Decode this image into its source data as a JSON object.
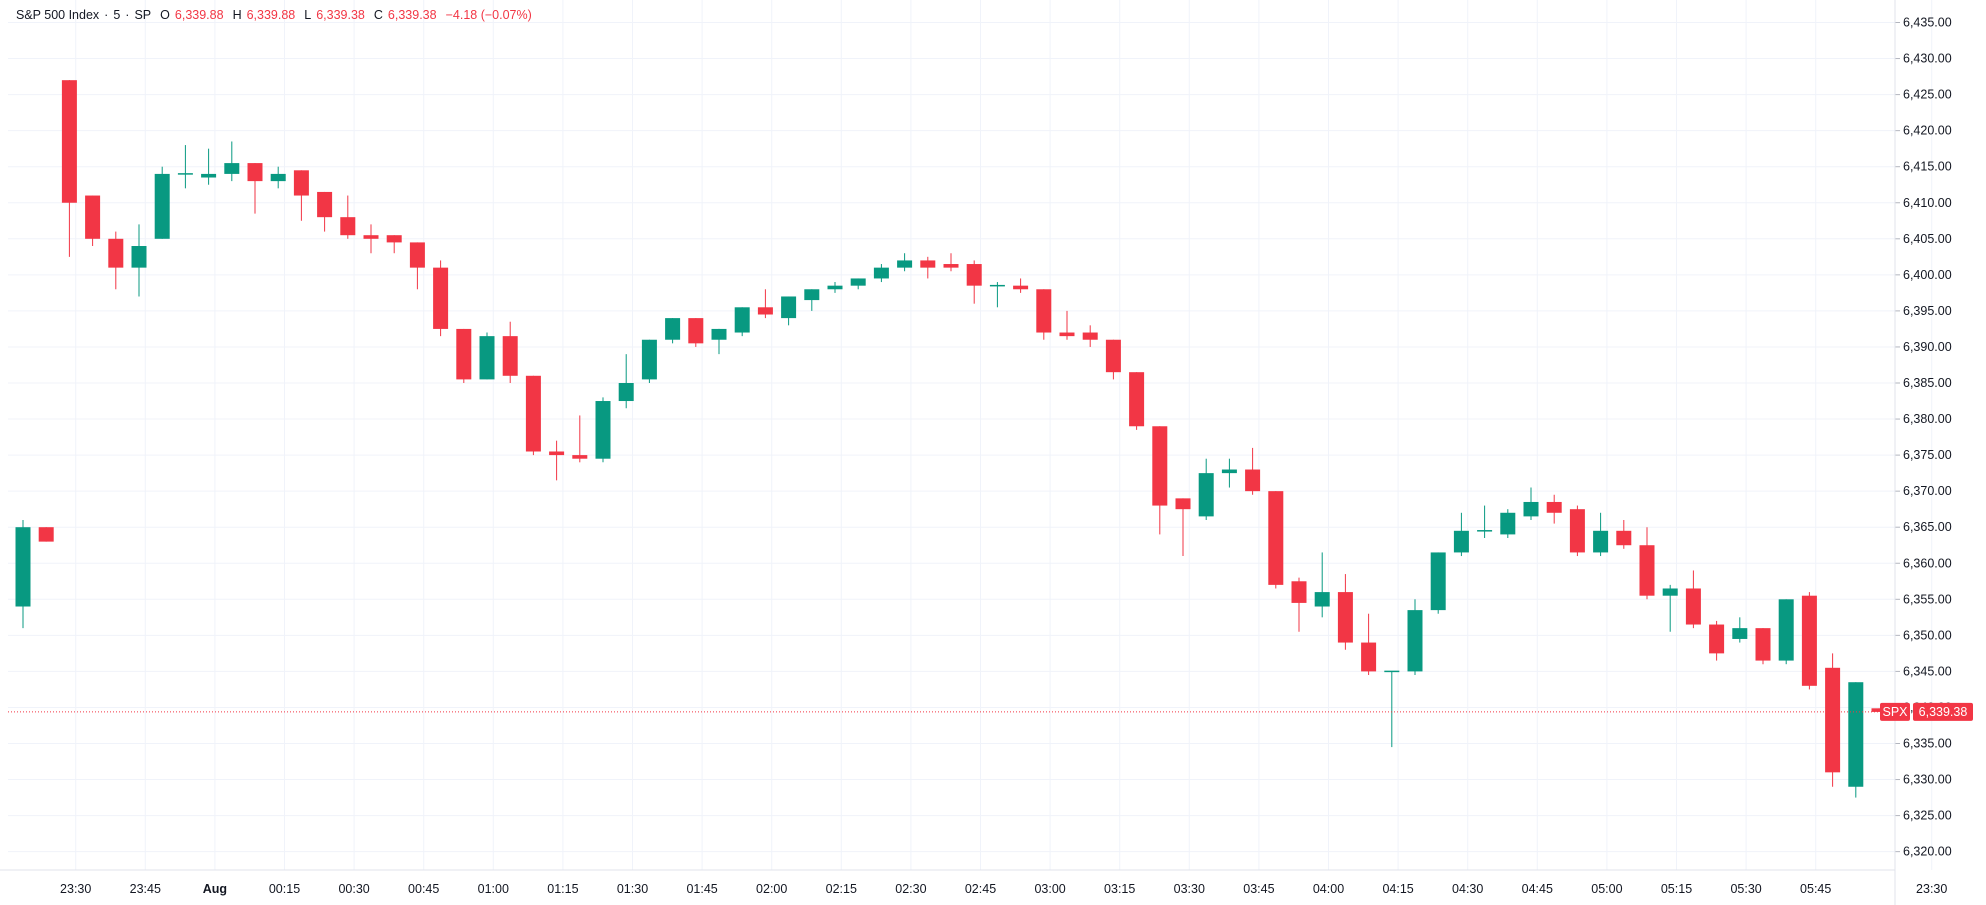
{
  "legend": {
    "symbol": "S&P 500 Index",
    "interval": "5",
    "exchange": "SP",
    "open_label": "O",
    "open": "6,339.88",
    "high_label": "H",
    "high": "6,339.88",
    "low_label": "L",
    "low": "6,339.38",
    "close_label": "C",
    "close": "6,339.38",
    "change": "−4.18 (−0.07%)"
  },
  "last_price": {
    "ticker": "SPX",
    "value": "6,339.38",
    "price": 6339.38
  },
  "colors": {
    "up": "#089981",
    "down": "#f23645",
    "grid": "#f0f3fa",
    "text": "#131722"
  },
  "chart_data": {
    "type": "candlestick",
    "interval_minutes": 5,
    "y_axis": {
      "range": [
        6320,
        6435
      ],
      "ticks": [
        "6,435.00",
        "6,430.00",
        "6,425.00",
        "6,420.00",
        "6,415.00",
        "6,410.00",
        "6,405.00",
        "6,400.00",
        "6,395.00",
        "6,390.00",
        "6,385.00",
        "6,380.00",
        "6,375.00",
        "6,370.00",
        "6,365.00",
        "6,360.00",
        "6,355.00",
        "6,350.00",
        "6,345.00",
        "6,340.00",
        "6,335.00",
        "6,330.00",
        "6,325.00",
        "6,320.00"
      ]
    },
    "x_axis": {
      "ticks": [
        {
          "label": "23:30",
          "index": 2
        },
        {
          "label": "23:45",
          "index": 5
        },
        {
          "label": "Aug",
          "index": 8
        },
        {
          "label": "00:15",
          "index": 11
        },
        {
          "label": "00:30",
          "index": 14
        },
        {
          "label": "00:45",
          "index": 17
        },
        {
          "label": "01:00",
          "index": 20
        },
        {
          "label": "01:15",
          "index": 23
        },
        {
          "label": "01:30",
          "index": 26
        },
        {
          "label": "01:45",
          "index": 29
        },
        {
          "label": "02:00",
          "index": 32
        },
        {
          "label": "02:15",
          "index": 35
        },
        {
          "label": "02:30",
          "index": 38
        },
        {
          "label": "02:45",
          "index": 41
        },
        {
          "label": "03:00",
          "index": 44
        },
        {
          "label": "03:15",
          "index": 47
        },
        {
          "label": "03:30",
          "index": 50
        },
        {
          "label": "03:45",
          "index": 53
        },
        {
          "label": "04:00",
          "index": 56
        },
        {
          "label": "04:15",
          "index": 59
        },
        {
          "label": "04:30",
          "index": 62
        },
        {
          "label": "04:45",
          "index": 65
        },
        {
          "label": "05:00",
          "index": 68
        },
        {
          "label": "05:15",
          "index": 71
        },
        {
          "label": "05:30",
          "index": 74
        },
        {
          "label": "05:45",
          "index": 77
        },
        {
          "label": "23:30",
          "index": 82
        }
      ]
    },
    "candles": [
      {
        "o": 6354,
        "h": 6366,
        "l": 6351,
        "c": 6365
      },
      {
        "o": 6365,
        "h": 6365,
        "l": 6363,
        "c": 6363
      },
      {
        "o": 6427,
        "h": 6427,
        "l": 6402.5,
        "c": 6410
      },
      {
        "o": 6411,
        "h": 6411,
        "l": 6404,
        "c": 6405
      },
      {
        "o": 6405,
        "h": 6406,
        "l": 6398,
        "c": 6401
      },
      {
        "o": 6401,
        "h": 6407,
        "l": 6397,
        "c": 6404
      },
      {
        "o": 6405,
        "h": 6415,
        "l": 6405,
        "c": 6414
      },
      {
        "o": 6414,
        "h": 6418,
        "l": 6412,
        "c": 6414
      },
      {
        "o": 6413.5,
        "h": 6417.5,
        "l": 6412.5,
        "c": 6414
      },
      {
        "o": 6414,
        "h": 6418.5,
        "l": 6413,
        "c": 6415.5
      },
      {
        "o": 6415.5,
        "h": 6415.5,
        "l": 6408.5,
        "c": 6413
      },
      {
        "o": 6413,
        "h": 6415,
        "l": 6412,
        "c": 6414
      },
      {
        "o": 6414.5,
        "h": 6414.5,
        "l": 6407.5,
        "c": 6411
      },
      {
        "o": 6411.5,
        "h": 6411.5,
        "l": 6406,
        "c": 6408
      },
      {
        "o": 6408,
        "h": 6411,
        "l": 6405,
        "c": 6405.5
      },
      {
        "o": 6405.5,
        "h": 6407,
        "l": 6403,
        "c": 6405
      },
      {
        "o": 6405.5,
        "h": 6405.5,
        "l": 6403,
        "c": 6404.5
      },
      {
        "o": 6404.5,
        "h": 6404.5,
        "l": 6398,
        "c": 6401
      },
      {
        "o": 6401,
        "h": 6402,
        "l": 6391.5,
        "c": 6392.5
      },
      {
        "o": 6392.5,
        "h": 6392.5,
        "l": 6385,
        "c": 6385.5
      },
      {
        "o": 6385.5,
        "h": 6392,
        "l": 6385.5,
        "c": 6391.5
      },
      {
        "o": 6391.5,
        "h": 6393.5,
        "l": 6385,
        "c": 6386
      },
      {
        "o": 6386,
        "h": 6386,
        "l": 6375,
        "c": 6375.5
      },
      {
        "o": 6375.5,
        "h": 6377,
        "l": 6371.5,
        "c": 6375
      },
      {
        "o": 6375,
        "h": 6380.5,
        "l": 6374,
        "c": 6374.5
      },
      {
        "o": 6374.5,
        "h": 6383,
        "l": 6374,
        "c": 6382.5
      },
      {
        "o": 6382.5,
        "h": 6389,
        "l": 6381.5,
        "c": 6385
      },
      {
        "o": 6385.5,
        "h": 6391,
        "l": 6385,
        "c": 6391
      },
      {
        "o": 6391,
        "h": 6394,
        "l": 6390.5,
        "c": 6394
      },
      {
        "o": 6394,
        "h": 6394,
        "l": 6390,
        "c": 6390.5
      },
      {
        "o": 6391,
        "h": 6392.5,
        "l": 6389,
        "c": 6392.5
      },
      {
        "o": 6392,
        "h": 6395.5,
        "l": 6391.5,
        "c": 6395.5
      },
      {
        "o": 6395.5,
        "h": 6398,
        "l": 6394,
        "c": 6394.5
      },
      {
        "o": 6394,
        "h": 6397,
        "l": 6393,
        "c": 6397
      },
      {
        "o": 6396.5,
        "h": 6398,
        "l": 6395,
        "c": 6398
      },
      {
        "o": 6398,
        "h": 6399,
        "l": 6397.5,
        "c": 6398.5
      },
      {
        "o": 6398.5,
        "h": 6399.5,
        "l": 6398,
        "c": 6399.5
      },
      {
        "o": 6399.5,
        "h": 6401.5,
        "l": 6399,
        "c": 6401
      },
      {
        "o": 6401,
        "h": 6403,
        "l": 6400.5,
        "c": 6402
      },
      {
        "o": 6402,
        "h": 6402.5,
        "l": 6399.5,
        "c": 6401
      },
      {
        "o": 6401.5,
        "h": 6403,
        "l": 6400.5,
        "c": 6401
      },
      {
        "o": 6401.5,
        "h": 6402,
        "l": 6396,
        "c": 6398.5
      },
      {
        "o": 6398.5,
        "h": 6399,
        "l": 6395.5,
        "c": 6398.5
      },
      {
        "o": 6398.5,
        "h": 6399.5,
        "l": 6397.5,
        "c": 6398
      },
      {
        "o": 6398,
        "h": 6398,
        "l": 6391,
        "c": 6392
      },
      {
        "o": 6392,
        "h": 6395,
        "l": 6391,
        "c": 6391.5
      },
      {
        "o": 6392,
        "h": 6393,
        "l": 6390,
        "c": 6391
      },
      {
        "o": 6391,
        "h": 6391,
        "l": 6385.5,
        "c": 6386.5
      },
      {
        "o": 6386.5,
        "h": 6386.5,
        "l": 6378.5,
        "c": 6379
      },
      {
        "o": 6379,
        "h": 6379,
        "l": 6364,
        "c": 6368
      },
      {
        "o": 6369,
        "h": 6369,
        "l": 6361,
        "c": 6367.5
      },
      {
        "o": 6366.5,
        "h": 6374.5,
        "l": 6366,
        "c": 6372.5
      },
      {
        "o": 6372.5,
        "h": 6374.5,
        "l": 6370.5,
        "c": 6373
      },
      {
        "o": 6373,
        "h": 6376,
        "l": 6369.5,
        "c": 6370
      },
      {
        "o": 6370,
        "h": 6370,
        "l": 6356.5,
        "c": 6357
      },
      {
        "o": 6357.5,
        "h": 6358,
        "l": 6350.5,
        "c": 6354.5
      },
      {
        "o": 6354,
        "h": 6361.5,
        "l": 6352.5,
        "c": 6356
      },
      {
        "o": 6356,
        "h": 6358.5,
        "l": 6348,
        "c": 6349
      },
      {
        "o": 6349,
        "h": 6353,
        "l": 6344.5,
        "c": 6345
      },
      {
        "o": 6345,
        "h": 6345,
        "l": 6334.5,
        "c": 6345
      },
      {
        "o": 6345,
        "h": 6355,
        "l": 6344.5,
        "c": 6353.5
      },
      {
        "o": 6353.5,
        "h": 6361.5,
        "l": 6353,
        "c": 6361.5
      },
      {
        "o": 6361.5,
        "h": 6367,
        "l": 6361,
        "c": 6364.5
      },
      {
        "o": 6364.5,
        "h": 6368,
        "l": 6363.5,
        "c": 6364.5
      },
      {
        "o": 6364,
        "h": 6367.5,
        "l": 6363.5,
        "c": 6367
      },
      {
        "o": 6366.5,
        "h": 6370.5,
        "l": 6366,
        "c": 6368.5
      },
      {
        "o": 6368.5,
        "h": 6369.5,
        "l": 6365.5,
        "c": 6367
      },
      {
        "o": 6367.5,
        "h": 6368,
        "l": 6361,
        "c": 6361.5
      },
      {
        "o": 6361.5,
        "h": 6367,
        "l": 6361,
        "c": 6364.5
      },
      {
        "o": 6364.5,
        "h": 6366,
        "l": 6362,
        "c": 6362.5
      },
      {
        "o": 6362.5,
        "h": 6365,
        "l": 6355,
        "c": 6355.5
      },
      {
        "o": 6355.5,
        "h": 6357,
        "l": 6350.5,
        "c": 6356.5
      },
      {
        "o": 6356.5,
        "h": 6359,
        "l": 6351,
        "c": 6351.5
      },
      {
        "o": 6351.5,
        "h": 6352,
        "l": 6346.5,
        "c": 6347.5
      },
      {
        "o": 6349.5,
        "h": 6352.5,
        "l": 6349,
        "c": 6351
      },
      {
        "o": 6351,
        "h": 6351,
        "l": 6346,
        "c": 6346.5
      },
      {
        "o": 6346.5,
        "h": 6355,
        "l": 6346,
        "c": 6355
      },
      {
        "o": 6355.5,
        "h": 6356,
        "l": 6342.5,
        "c": 6343
      },
      {
        "o": 6345.5,
        "h": 6347.5,
        "l": 6329,
        "c": 6331
      },
      {
        "o": 6329,
        "h": 6343.5,
        "l": 6327.5,
        "c": 6343.5
      },
      {
        "o": 6339.88,
        "h": 6339.88,
        "l": 6339.38,
        "c": 6339.38
      }
    ]
  }
}
